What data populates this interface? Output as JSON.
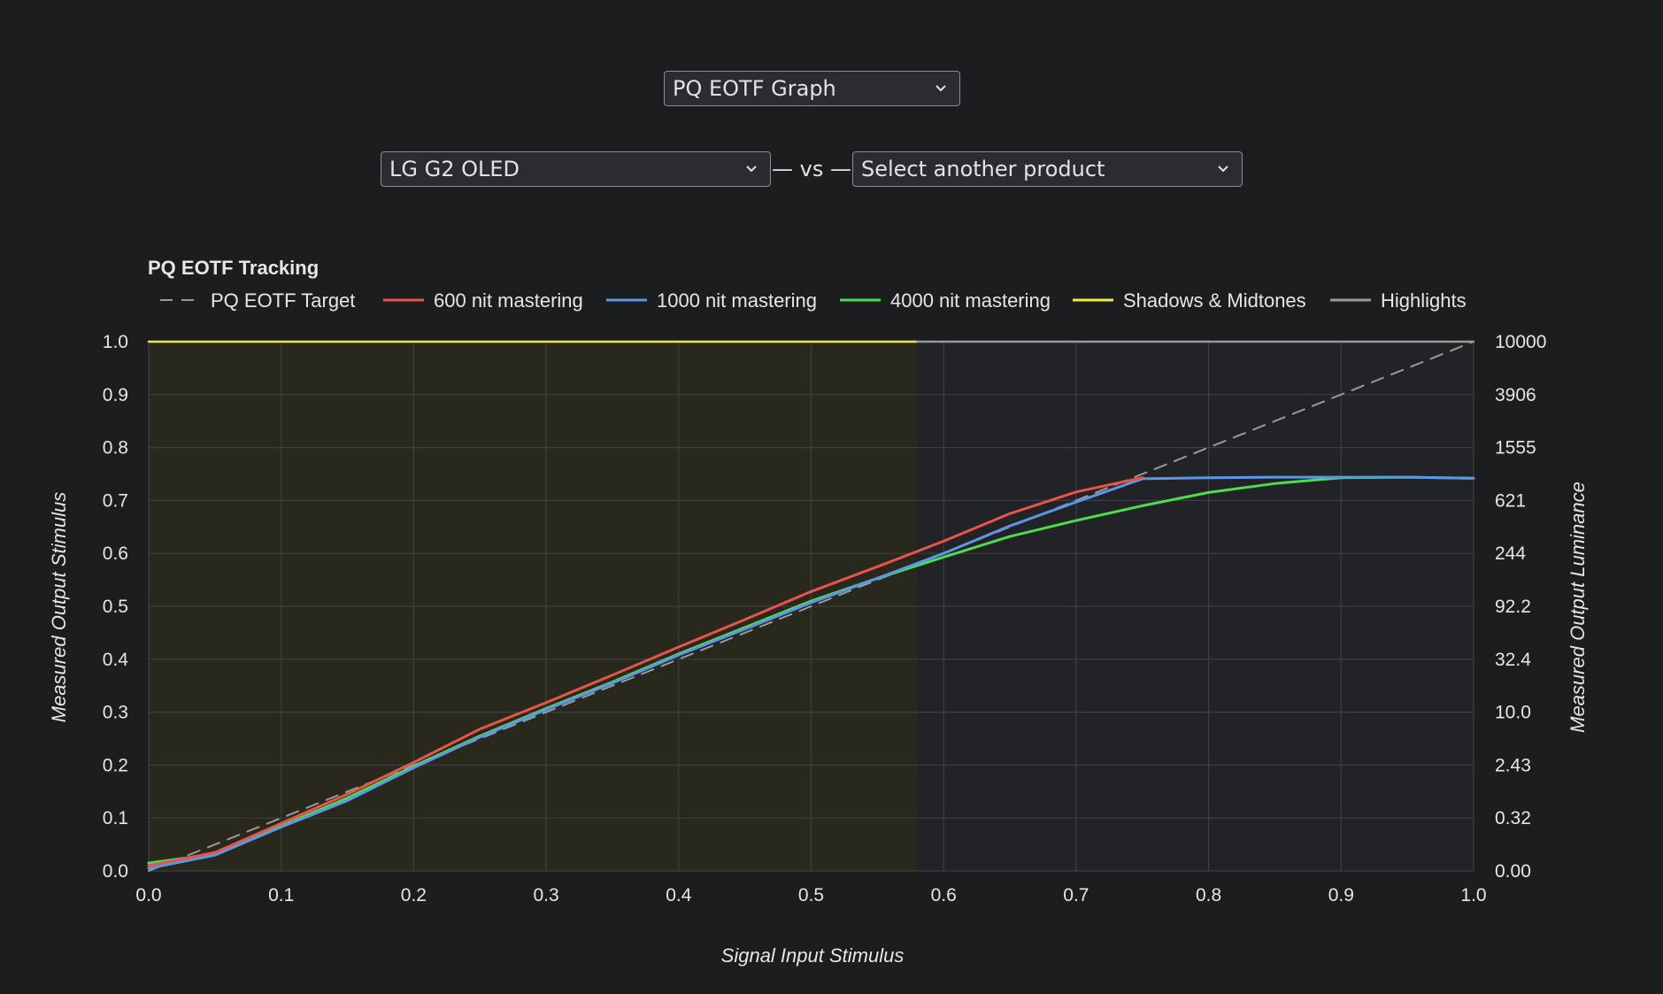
{
  "graph_select": {
    "value": "PQ EOTF Graph"
  },
  "product_a_select": {
    "value": "LG G2 OLED"
  },
  "vs_label": "— vs —",
  "product_b_select": {
    "value": "Select another product"
  },
  "chart_data": {
    "type": "line",
    "title": "PQ EOTF Tracking",
    "xlabel": "Signal Input Stimulus",
    "ylabel": "Measured Output Stimulus",
    "y2label": "Measured Output Luminance",
    "xlim": [
      0,
      1
    ],
    "ylim": [
      0,
      1
    ],
    "x_ticks": [
      "0.0",
      "0.1",
      "0.2",
      "0.3",
      "0.4",
      "0.5",
      "0.6",
      "0.7",
      "0.8",
      "0.9",
      "1.0"
    ],
    "y_ticks": [
      "0.0",
      "0.1",
      "0.2",
      "0.3",
      "0.4",
      "0.5",
      "0.6",
      "0.7",
      "0.8",
      "0.9",
      "1.0"
    ],
    "y2_ticks": [
      "0.00",
      "0.32",
      "2.43",
      "10.0",
      "32.4",
      "92.2",
      "244",
      "621",
      "1555",
      "3906",
      "10000"
    ],
    "grid": true,
    "legend_position": "top-left",
    "regions": [
      {
        "name": "Shadows & Midtones",
        "x_start": 0,
        "x_end": 0.58,
        "color": "#ecea3c",
        "fill": "#28281d"
      },
      {
        "name": "Highlights",
        "x_start": 0.58,
        "x_end": 1.0,
        "color": "#9a9a9a",
        "fill": "#222326"
      }
    ],
    "series": [
      {
        "name": "PQ EOTF Target",
        "color": "#9a9a9a",
        "dashed": true,
        "x": [
          0,
          1
        ],
        "y": [
          0,
          1
        ]
      },
      {
        "name": "600 nit mastering",
        "color": "#e9534a",
        "dashed": false,
        "x": [
          0,
          0.05,
          0.1,
          0.15,
          0.2,
          0.25,
          0.3,
          0.35,
          0.4,
          0.45,
          0.5,
          0.55,
          0.6,
          0.65,
          0.7,
          0.75
        ],
        "y": [
          0.01,
          0.035,
          0.09,
          0.145,
          0.205,
          0.268,
          0.318,
          0.37,
          0.423,
          0.475,
          0.528,
          0.575,
          0.623,
          0.675,
          0.716,
          0.743
        ]
      },
      {
        "name": "1000 nit mastering",
        "color": "#5b96e8",
        "dashed": false,
        "x": [
          0,
          0.05,
          0.1,
          0.15,
          0.2,
          0.25,
          0.3,
          0.35,
          0.4,
          0.45,
          0.5,
          0.55,
          0.6,
          0.65,
          0.7,
          0.75,
          0.8,
          0.85,
          0.9,
          0.95,
          1.0
        ],
        "y": [
          0.005,
          0.03,
          0.083,
          0.133,
          0.195,
          0.253,
          0.305,
          0.355,
          0.408,
          0.457,
          0.507,
          0.553,
          0.6,
          0.652,
          0.697,
          0.741,
          0.743,
          0.744,
          0.744,
          0.744,
          0.742
        ]
      },
      {
        "name": "4000 nit mastering",
        "color": "#4cdd4c",
        "dashed": false,
        "x": [
          0,
          0.05,
          0.1,
          0.15,
          0.2,
          0.25,
          0.3,
          0.35,
          0.4,
          0.45,
          0.5,
          0.55,
          0.6,
          0.65,
          0.7,
          0.75,
          0.8,
          0.85,
          0.9,
          0.95,
          1.0
        ],
        "y": [
          0.015,
          0.032,
          0.085,
          0.138,
          0.198,
          0.255,
          0.307,
          0.357,
          0.41,
          0.46,
          0.51,
          0.553,
          0.593,
          0.632,
          0.662,
          0.69,
          0.715,
          0.732,
          0.743,
          0.744,
          0.742
        ]
      },
      {
        "name": "Shadows & Midtones",
        "color": "#ecea3c",
        "dashed": false,
        "x": [
          0,
          0.58
        ],
        "y": [
          1,
          1
        ]
      },
      {
        "name": "Highlights",
        "color": "#9a9a9a",
        "dashed": false,
        "x": [
          0.58,
          1.0
        ],
        "y": [
          1,
          1
        ]
      }
    ]
  }
}
